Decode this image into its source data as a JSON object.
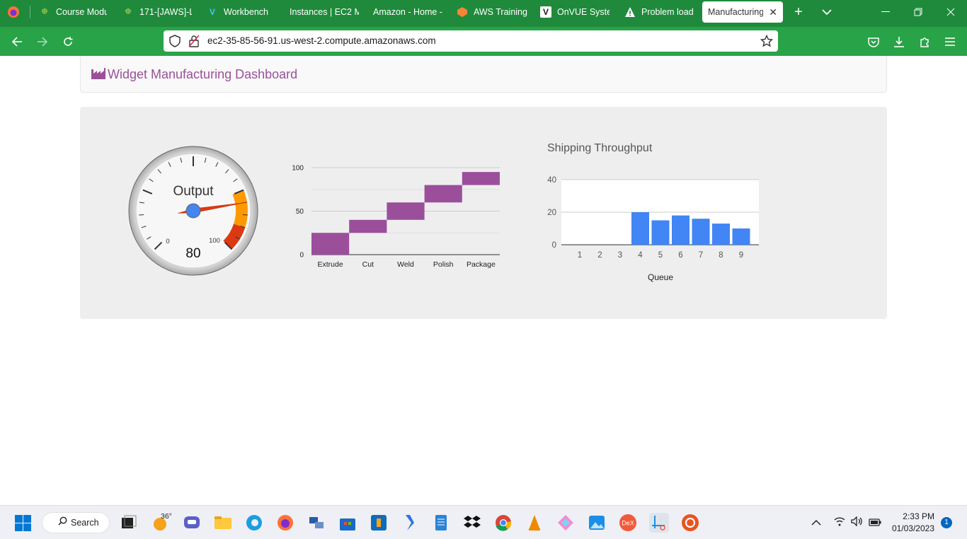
{
  "browser": {
    "tabs": [
      {
        "label": "Course Modu",
        "icon": "course-icon"
      },
      {
        "label": "171-[JAWS]-L",
        "icon": "jaws-icon"
      },
      {
        "label": "Workbench",
        "icon": "workbench-icon"
      },
      {
        "label": "Instances | EC2 M",
        "icon": "ec2-icon"
      },
      {
        "label": "Amazon - Home -",
        "icon": "amazon-icon"
      },
      {
        "label": "AWS Training",
        "icon": "aws-training-icon"
      },
      {
        "label": "OnVUE Systen",
        "icon": "onvue-icon"
      },
      {
        "label": "Problem loadi",
        "icon": "warning-icon"
      },
      {
        "label": "Manufacturing",
        "icon": "none"
      }
    ],
    "url": "ec2-35-85-56-91.us-west-2.compute.amazonaws.com"
  },
  "page": {
    "title": "Widget Manufacturing Dashboard"
  },
  "chart_data": [
    {
      "type": "gauge",
      "label": "Output",
      "value": 80,
      "min": 0,
      "max": 100,
      "tick_labels": [
        "0",
        "100"
      ],
      "value_label": "80",
      "bands": [
        {
          "from": 75,
          "to": 90,
          "color": "#ff9900"
        },
        {
          "from": 90,
          "to": 100,
          "color": "#dc3912"
        }
      ]
    },
    {
      "type": "bar",
      "subtype": "waterfall",
      "categories": [
        "Extrude",
        "Cut",
        "Weld",
        "Polish",
        "Package"
      ],
      "values": [
        25,
        15,
        20,
        20,
        15
      ],
      "y_ticks": [
        "0",
        "50",
        "100"
      ],
      "ylim": [
        0,
        100
      ],
      "color": "#9b4f9b"
    },
    {
      "type": "bar",
      "title": "Shipping Throughput",
      "xlabel": "Queue",
      "categories": [
        "1",
        "2",
        "3",
        "4",
        "5",
        "6",
        "7",
        "8",
        "9"
      ],
      "values": [
        0,
        0,
        0,
        20,
        15,
        18,
        16,
        13,
        10
      ],
      "y_ticks": [
        "0",
        "20",
        "40"
      ],
      "ylim": [
        0,
        40
      ],
      "color": "#4285f4"
    }
  ],
  "taskbar": {
    "search_label": "Search",
    "weather": "36°",
    "time": "2:33 PM",
    "date": "01/03/2023",
    "notifications": "1"
  }
}
